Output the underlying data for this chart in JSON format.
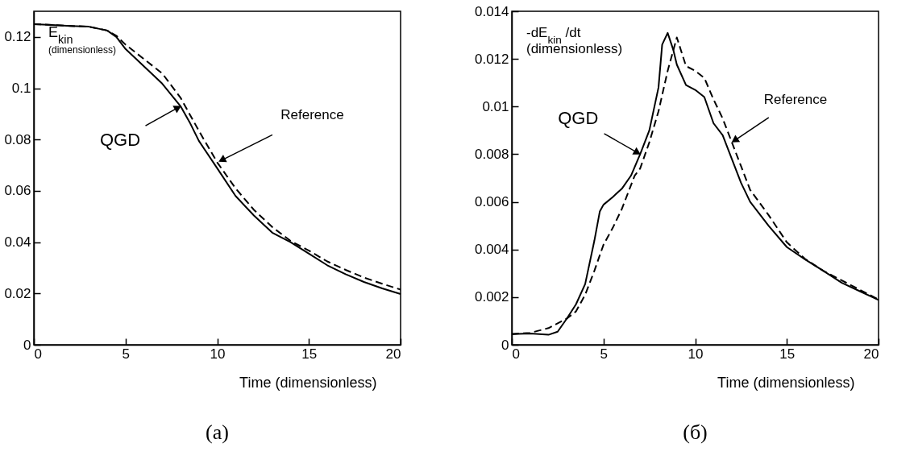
{
  "chart_data": [
    {
      "type": "line",
      "title": "(a)",
      "xlabel": "Time (dimensionless)",
      "ylabel": "E$_{kin}$ (dimensionless)",
      "xlim": [
        0,
        20
      ],
      "ylim": [
        0,
        0.13
      ],
      "xticks": [
        0,
        5,
        10,
        15,
        20
      ],
      "yticks": [
        0,
        0.02,
        0.04,
        0.06,
        0.08,
        0.1,
        0.12
      ],
      "grid": false,
      "legend": false,
      "series": [
        {
          "color": "#000000",
          "line_style": "solid",
          "x": [
            0,
            1,
            2,
            3,
            4,
            4.5,
            5,
            6,
            7,
            8,
            8.5,
            9,
            10,
            11,
            12,
            13,
            14,
            15,
            16,
            17,
            18,
            19,
            20
          ],
          "values": [
            0.125,
            0.1247,
            0.1243,
            0.124,
            0.1225,
            0.12,
            0.1153,
            0.1086,
            0.1018,
            0.093,
            0.0867,
            0.0795,
            0.0688,
            0.058,
            0.0504,
            0.0437,
            0.04,
            0.0355,
            0.031,
            0.0275,
            0.0245,
            0.022,
            0.0198
          ]
        },
        {
          "color": "#000000",
          "line_style": "dashed",
          "x": [
            0,
            1,
            2,
            3,
            4,
            4.5,
            5,
            6,
            7,
            8,
            9,
            10,
            11,
            12,
            13,
            14,
            15,
            16,
            17,
            18,
            19,
            20
          ],
          "values": [
            0.125,
            0.1247,
            0.1243,
            0.124,
            0.1225,
            0.1205,
            0.117,
            0.1114,
            0.1058,
            0.0963,
            0.0834,
            0.0711,
            0.061,
            0.0526,
            0.0459,
            0.0405,
            0.0367,
            0.0325,
            0.0292,
            0.0262,
            0.0238,
            0.0215
          ]
        }
      ],
      "annotations": [
        {
          "text": "QGD",
          "x": 8,
          "y": 0.093
        },
        {
          "text": "Reference",
          "x": 10,
          "y": 0.0711
        }
      ]
    },
    {
      "type": "line",
      "title": "(б)",
      "xlabel": "Time (dimensionless)",
      "ylabel": "-dE$_{kin}$ /dt (dimensionless)",
      "xlim": [
        0,
        20
      ],
      "ylim": [
        0,
        0.014
      ],
      "xticks": [
        0,
        5,
        10,
        15,
        20
      ],
      "yticks": [
        0,
        0.002,
        0.004,
        0.006,
        0.008,
        0.01,
        0.012,
        0.014
      ],
      "grid": false,
      "legend": false,
      "series": [
        {
          "color": "#000000",
          "line_style": "solid",
          "x": [
            0,
            1,
            2,
            2.5,
            3,
            3.5,
            4,
            4.5,
            4.8,
            5,
            5.5,
            6,
            6.5,
            7,
            7.5,
            8,
            8.2,
            8.5,
            8.8,
            9,
            9.5,
            10,
            10.5,
            11,
            11.5,
            12,
            12.5,
            13,
            14,
            15,
            16,
            17,
            18,
            19,
            20
          ],
          "values": [
            0.00045,
            0.00047,
            0.00042,
            0.00055,
            0.0011,
            0.0017,
            0.00255,
            0.00436,
            0.0056,
            0.00588,
            0.0062,
            0.00655,
            0.0071,
            0.008,
            0.009,
            0.0108,
            0.0126,
            0.01309,
            0.0124,
            0.01176,
            0.0109,
            0.0107,
            0.0104,
            0.0093,
            0.0088,
            0.0078,
            0.0068,
            0.006,
            0.005,
            0.0041,
            0.00358,
            0.0031,
            0.0026,
            0.00224,
            0.00188
          ]
        },
        {
          "color": "#000000",
          "line_style": "dotted",
          "x": [
            0,
            1,
            2,
            3,
            3.5,
            4,
            4.5,
            5,
            5.5,
            6,
            6.7,
            7,
            7.5,
            8,
            8.5,
            9,
            9.5,
            10,
            10.5,
            11,
            11.5,
            12,
            12.5,
            13,
            14,
            15,
            16,
            17,
            18,
            19,
            20
          ],
          "values": [
            0.00045,
            0.0005,
            0.0007,
            0.0011,
            0.0014,
            0.0021,
            0.0031,
            0.0042,
            0.0049,
            0.0057,
            0.0071,
            0.0074,
            0.0085,
            0.0098,
            0.0115,
            0.0129,
            0.0117,
            0.0115,
            0.0112,
            0.0103,
            0.0095,
            0.0085,
            0.0075,
            0.0065,
            0.00545,
            0.0043,
            0.0036,
            0.0031,
            0.0027,
            0.0023,
            0.0019
          ]
        }
      ],
      "annotations": [
        {
          "text": "QGD",
          "x": 7,
          "y": 0.008
        },
        {
          "text": "Reference",
          "x": 12,
          "y": 0.0085
        }
      ]
    }
  ]
}
